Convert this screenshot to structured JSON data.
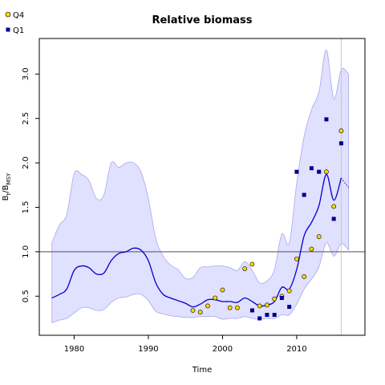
{
  "chart_data": {
    "type": "line",
    "title": "Relative biomass",
    "xlabel": "Time",
    "ylabel": "B_t/B_MSY",
    "ylabel_main": "B",
    "ylabel_sub1": "t",
    "ylabel_mid": "/B",
    "ylabel_sub2": "MSY",
    "xlim": [
      1975.3,
      2019.2
    ],
    "ylim": [
      0.06,
      3.4
    ],
    "xticks": [
      1980,
      1990,
      2000,
      2010
    ],
    "yticks": [
      0.5,
      1.0,
      1.5,
      2.0,
      2.5,
      3.0
    ],
    "xtick_labels": [
      "1980",
      "1990",
      "2000",
      "2010"
    ],
    "ytick_labels": [
      "0.5",
      "1.0",
      "1.5",
      "2.0",
      "2.5",
      "3.0"
    ],
    "reference_line_y": 1.0,
    "reference_vline_x": 2016,
    "legend": {
      "placement": "top-left outside plot",
      "entries": [
        {
          "label": "Q4",
          "color": "#ffd700",
          "marker": "circle"
        },
        {
          "label": "Q1",
          "color": "#00008b",
          "marker": "square"
        }
      ]
    },
    "colors": {
      "median_line": "#0000cc",
      "band_fill": "#e0e0ff",
      "band_stroke": "#a8a8f0",
      "reference_line": "#707070",
      "vline": "#c8c8c8"
    },
    "series": [
      {
        "name": "median",
        "x": [
          1977,
          1978,
          1979,
          1980,
          1981,
          1982,
          1983,
          1984,
          1985,
          1986,
          1987,
          1988,
          1989,
          1990,
          1991,
          1992,
          1993,
          1994,
          1995,
          1996,
          1997,
          1998,
          1999,
          2000,
          2001,
          2002,
          2003,
          2004,
          2005,
          2006,
          2007,
          2008,
          2009,
          2010,
          2011,
          2012,
          2013,
          2014,
          2015,
          2016
        ],
        "y": [
          0.48,
          0.52,
          0.58,
          0.79,
          0.84,
          0.82,
          0.75,
          0.76,
          0.9,
          0.98,
          1.0,
          1.04,
          1.02,
          0.9,
          0.65,
          0.52,
          0.48,
          0.45,
          0.42,
          0.38,
          0.41,
          0.46,
          0.46,
          0.44,
          0.44,
          0.43,
          0.48,
          0.44,
          0.39,
          0.4,
          0.44,
          0.6,
          0.58,
          0.8,
          1.18,
          1.33,
          1.52,
          1.87,
          1.58,
          1.83
        ]
      },
      {
        "name": "upper",
        "x": [
          1977,
          1978,
          1979,
          1980,
          1981,
          1982,
          1983,
          1984,
          1985,
          1986,
          1987,
          1988,
          1989,
          1990,
          1991,
          1992,
          1993,
          1994,
          1995,
          1996,
          1997,
          1998,
          1999,
          2000,
          2001,
          2002,
          2003,
          2004,
          2005,
          2006,
          2007,
          2008,
          2009,
          2010,
          2011,
          2012,
          2013,
          2014,
          2015,
          2016,
          2017
        ],
        "y": [
          1.1,
          1.3,
          1.42,
          1.88,
          1.87,
          1.8,
          1.6,
          1.64,
          2.0,
          1.95,
          2.0,
          2.0,
          1.9,
          1.6,
          1.15,
          0.95,
          0.85,
          0.8,
          0.7,
          0.71,
          0.82,
          0.83,
          0.84,
          0.84,
          0.82,
          0.79,
          0.89,
          0.79,
          0.65,
          0.67,
          0.8,
          1.2,
          1.1,
          1.77,
          2.3,
          2.6,
          2.8,
          3.27,
          2.72,
          3.05,
          3.0
        ]
      },
      {
        "name": "lower",
        "x": [
          1977,
          1978,
          1979,
          1980,
          1981,
          1982,
          1983,
          1984,
          1985,
          1986,
          1987,
          1988,
          1989,
          1990,
          1991,
          1992,
          1993,
          1994,
          1995,
          1996,
          1997,
          1998,
          1999,
          2000,
          2001,
          2002,
          2003,
          2004,
          2005,
          2006,
          2007,
          2008,
          2009,
          2010,
          2011,
          2012,
          2013,
          2014,
          2015,
          2016,
          2017
        ],
        "y": [
          0.2,
          0.23,
          0.25,
          0.31,
          0.37,
          0.37,
          0.34,
          0.35,
          0.43,
          0.48,
          0.49,
          0.52,
          0.52,
          0.45,
          0.33,
          0.3,
          0.28,
          0.27,
          0.26,
          0.26,
          0.27,
          0.27,
          0.27,
          0.24,
          0.25,
          0.25,
          0.27,
          0.25,
          0.24,
          0.25,
          0.25,
          0.29,
          0.29,
          0.41,
          0.58,
          0.69,
          0.83,
          1.1,
          0.95,
          1.09,
          1.02
        ]
      },
      {
        "name": "projection",
        "x": [
          2016,
          2017
        ],
        "y": [
          1.83,
          1.72
        ]
      },
      {
        "name": "Q4",
        "x": [
          1996,
          1997,
          1998,
          1999,
          2000,
          2001,
          2002,
          2003,
          2004,
          2005,
          2006,
          2007,
          2008,
          2009,
          2010,
          2011,
          2012,
          2013,
          2014,
          2015,
          2016
        ],
        "y": [
          0.34,
          0.32,
          0.39,
          0.48,
          0.57,
          0.37,
          0.37,
          0.81,
          0.86,
          0.39,
          0.4,
          0.47,
          0.5,
          0.56,
          0.92,
          0.72,
          1.03,
          1.17,
          1.9,
          1.51,
          2.36
        ]
      },
      {
        "name": "Q1",
        "x": [
          2004,
          2005,
          2006,
          2007,
          2008,
          2009,
          2010,
          2011,
          2012,
          2013,
          2014,
          2015,
          2016
        ],
        "y": [
          0.34,
          0.25,
          0.29,
          0.29,
          0.48,
          0.38,
          1.9,
          1.64,
          1.94,
          1.9,
          2.49,
          1.37,
          2.22
        ]
      }
    ]
  }
}
